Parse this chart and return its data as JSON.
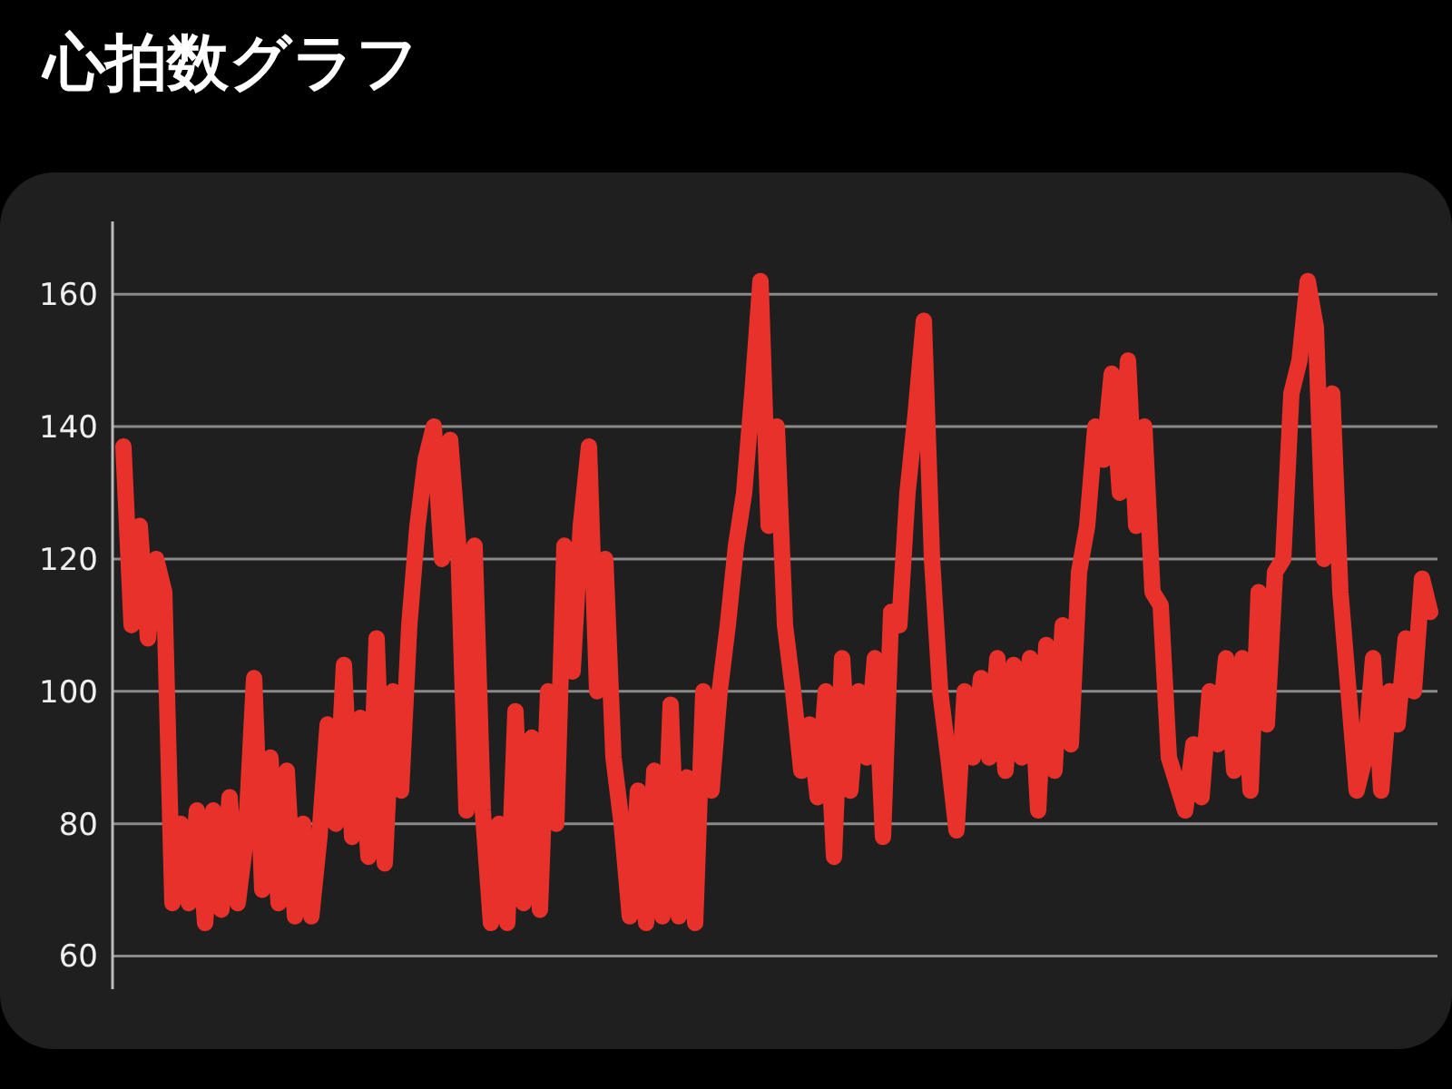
{
  "chart_data": {
    "type": "line",
    "title": "心拍数グラフ",
    "categories": [
      null,
      null,
      null,
      null,
      null,
      null,
      null,
      null,
      null,
      null,
      null,
      null,
      null,
      null,
      null,
      null,
      null,
      null,
      null,
      null,
      null,
      null,
      null,
      null,
      null,
      null,
      null,
      null,
      null,
      null,
      null,
      null,
      null,
      null,
      null,
      null,
      null,
      null,
      null,
      null,
      null,
      null,
      null,
      null,
      null,
      null,
      null,
      null,
      null,
      null,
      null,
      null,
      null,
      null,
      null,
      null,
      null,
      null,
      null,
      null,
      null,
      null,
      null,
      null,
      null,
      null,
      null,
      null,
      null,
      null,
      null,
      null,
      null,
      null,
      null,
      null,
      null,
      null,
      null,
      null,
      null,
      null,
      null,
      null,
      null,
      null,
      null,
      null,
      null,
      null,
      null,
      null,
      null,
      null,
      null,
      null,
      null,
      null,
      null,
      null,
      null,
      null,
      null,
      null,
      null,
      null,
      null,
      null,
      null,
      null,
      null,
      null,
      null,
      null,
      null,
      null,
      null,
      null,
      null,
      null,
      null,
      null,
      null,
      null,
      null,
      null,
      null,
      null,
      null,
      null,
      null,
      null,
      null,
      null,
      null,
      null,
      null,
      null,
      null,
      null,
      null,
      null,
      null,
      null,
      null,
      null,
      null,
      null,
      null,
      null,
      null,
      null,
      null,
      null,
      null,
      null,
      null,
      null,
      null,
      null,
      null
    ],
    "series": [
      {
        "color": "#e8312a",
        "values": [
          137,
          110,
          125,
          108,
          120,
          115,
          68,
          80,
          68,
          82,
          65,
          82,
          67,
          84,
          68,
          78,
          102,
          70,
          90,
          68,
          88,
          66,
          80,
          66,
          78,
          95,
          80,
          104,
          78,
          96,
          75,
          108,
          74,
          100,
          85,
          110,
          125,
          135,
          140,
          120,
          138,
          122,
          82,
          122,
          82,
          65,
          80,
          65,
          97,
          68,
          93,
          67,
          100,
          80,
          122,
          103,
          125,
          137,
          100,
          120,
          90,
          80,
          66,
          85,
          65,
          88,
          66,
          98,
          66,
          87,
          65,
          100,
          85,
          100,
          110,
          122,
          130,
          145,
          162,
          125,
          140,
          110,
          100,
          88,
          95,
          84,
          100,
          75,
          105,
          85,
          100,
          90,
          105,
          78,
          112,
          110,
          130,
          142,
          156,
          120,
          100,
          90,
          79,
          100,
          90,
          102,
          90,
          105,
          88,
          104,
          90,
          105,
          82,
          107,
          88,
          110,
          92,
          118,
          125,
          140,
          135,
          148,
          130,
          150,
          125,
          140,
          115,
          113,
          90,
          86,
          82,
          92,
          84,
          100,
          92,
          105,
          88,
          105,
          85,
          115,
          95,
          118,
          120,
          145,
          150,
          162,
          155,
          120,
          145,
          115,
          100,
          85,
          90,
          105,
          85,
          100,
          95,
          108,
          100,
          117,
          112
        ]
      }
    ],
    "ylim": [
      55,
      171
    ],
    "yticks": [
      60,
      80,
      100,
      120,
      140,
      160
    ],
    "grid": "y",
    "tick_labels": "y",
    "line_style": "solid",
    "marker": "none"
  }
}
